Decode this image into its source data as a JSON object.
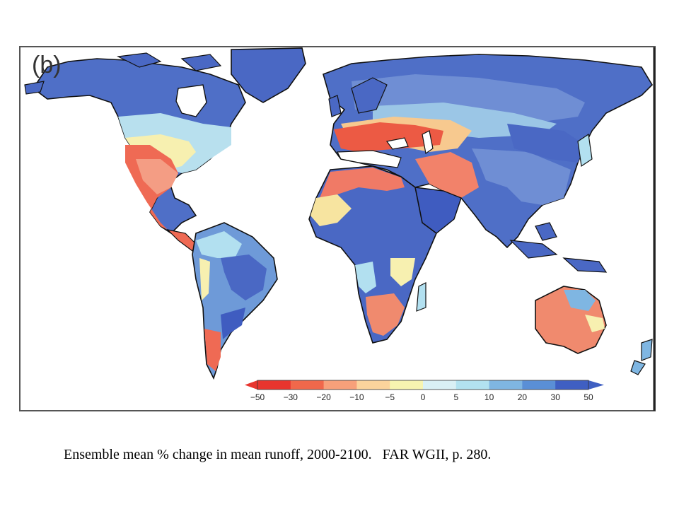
{
  "figure": {
    "panel_label": "(b)",
    "colorbar": {
      "ticks": [
        "−50",
        "−30",
        "−20",
        "−10",
        "−5",
        "0",
        "5",
        "10",
        "20",
        "30",
        "50"
      ],
      "colors": [
        "#e8352e",
        "#f0684b",
        "#f7a07a",
        "#fbd39c",
        "#f7f4b0",
        "#d9f0f5",
        "#b2e2f0",
        "#7fb6e2",
        "#5a8fd6",
        "#3f5fc2"
      ]
    }
  },
  "caption": "Ensemble mean % change in mean runoff, 2000-2100.   FAR WGII, p. 280."
}
